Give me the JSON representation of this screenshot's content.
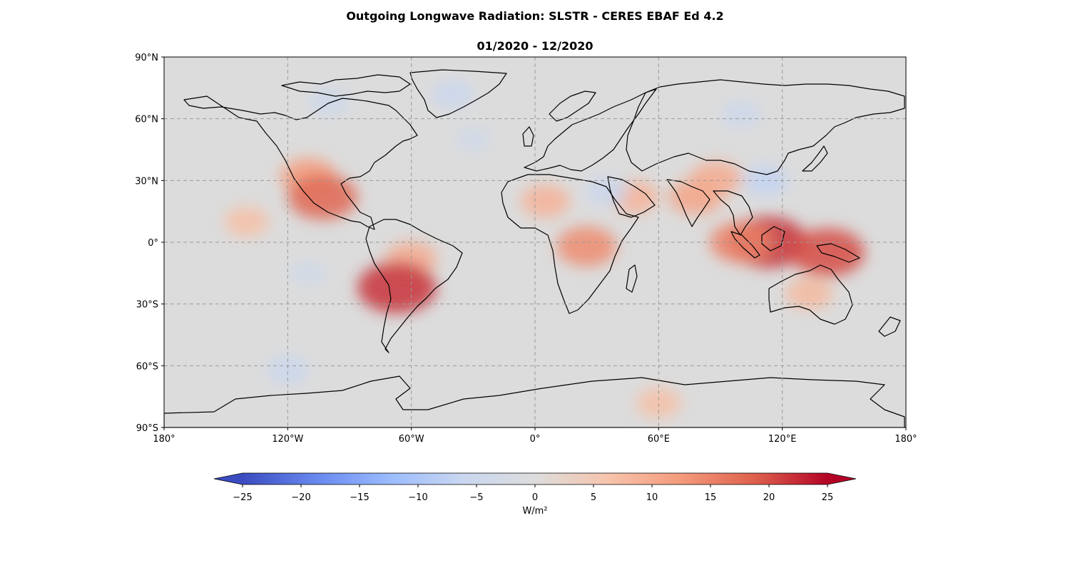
{
  "title": "Outgoing Longwave Radiation: SLSTR - CERES EBAF Ed 4.2",
  "subtitle": "01/2020 - 12/2020",
  "map": {
    "projection": "PlateCarree",
    "lon_range": [
      -180,
      180
    ],
    "lat_range": [
      -90,
      90
    ],
    "gridlines": "dashed gray",
    "lon_ticks": [
      {
        "value": -180,
        "label": "180°"
      },
      {
        "value": -120,
        "label": "120°W"
      },
      {
        "value": -60,
        "label": "60°W"
      },
      {
        "value": 0,
        "label": "0°"
      },
      {
        "value": 60,
        "label": "60°E"
      },
      {
        "value": 120,
        "label": "120°E"
      },
      {
        "value": 180,
        "label": "180°"
      }
    ],
    "lat_ticks": [
      {
        "value": 90,
        "label": "90°N"
      },
      {
        "value": 60,
        "label": "60°N"
      },
      {
        "value": 30,
        "label": "30°N"
      },
      {
        "value": 0,
        "label": "0°"
      },
      {
        "value": -30,
        "label": "30°S"
      },
      {
        "value": -60,
        "label": "60°S"
      },
      {
        "value": -90,
        "label": "90°S"
      }
    ],
    "background_color": "#dcdcdc",
    "coastline_color": "#000000"
  },
  "colorbar": {
    "cmap": "coolwarm",
    "min": -25,
    "max": 25,
    "extend": "both",
    "unit_label": "W/m²",
    "ticks": [
      {
        "value": -25,
        "label": "−25"
      },
      {
        "value": -20,
        "label": "−20"
      },
      {
        "value": -15,
        "label": "−15"
      },
      {
        "value": -10,
        "label": "−10"
      },
      {
        "value": -5,
        "label": "−5"
      },
      {
        "value": 0,
        "label": "0"
      },
      {
        "value": 5,
        "label": "5"
      },
      {
        "value": 10,
        "label": "10"
      },
      {
        "value": 15,
        "label": "15"
      },
      {
        "value": 20,
        "label": "20"
      },
      {
        "value": 25,
        "label": "25"
      }
    ],
    "colors": [
      "#3b4cc0",
      "#6788ee",
      "#9abbff",
      "#c9d7f0",
      "#dddddd",
      "#f7c4ac",
      "#f49a7b",
      "#de614d",
      "#b40426"
    ]
  },
  "anomaly_regions": [
    {
      "name": "western-us",
      "lon": -110,
      "lat": 32,
      "value": 12
    },
    {
      "name": "mexico",
      "lon": -103,
      "lat": 22,
      "value": 18
    },
    {
      "name": "pacific-itcz",
      "lon": -140,
      "lat": 10,
      "value": 7
    },
    {
      "name": "amazon",
      "lon": -60,
      "lat": -8,
      "value": 10
    },
    {
      "name": "bolivia",
      "lon": -67,
      "lat": -22,
      "value": 22
    },
    {
      "name": "sahara",
      "lon": 5,
      "lat": 20,
      "value": 9
    },
    {
      "name": "central-africa",
      "lon": 25,
      "lat": -2,
      "value": 14
    },
    {
      "name": "arabia",
      "lon": 48,
      "lat": 22,
      "value": 9
    },
    {
      "name": "india",
      "lon": 78,
      "lat": 22,
      "value": 11
    },
    {
      "name": "tibet",
      "lon": 88,
      "lat": 31,
      "value": 10
    },
    {
      "name": "borneo",
      "lon": 113,
      "lat": 0,
      "value": 22
    },
    {
      "name": "sumatra",
      "lon": 100,
      "lat": 0,
      "value": 15
    },
    {
      "name": "new-guinea",
      "lon": 142,
      "lat": -5,
      "value": 20
    },
    {
      "name": "australia",
      "lon": 133,
      "lat": -25,
      "value": 8
    },
    {
      "name": "antarctica-east",
      "lon": 60,
      "lat": -78,
      "value": 7
    },
    {
      "name": "arctic-canada",
      "lon": -100,
      "lat": 68,
      "value": -5
    },
    {
      "name": "greenland",
      "lon": -40,
      "lat": 72,
      "value": -6
    },
    {
      "name": "siberia",
      "lon": 100,
      "lat": 62,
      "value": -5
    },
    {
      "name": "southern-ocean",
      "lon": -120,
      "lat": -62,
      "value": -6
    },
    {
      "name": "china-east",
      "lon": 112,
      "lat": 30,
      "value": -7
    },
    {
      "name": "arabian-sea",
      "lon": 35,
      "lat": 25,
      "value": -6
    },
    {
      "name": "south-pacific",
      "lon": -110,
      "lat": -15,
      "value": -4
    },
    {
      "name": "north-atlantic",
      "lon": -30,
      "lat": 50,
      "value": -4
    }
  ]
}
